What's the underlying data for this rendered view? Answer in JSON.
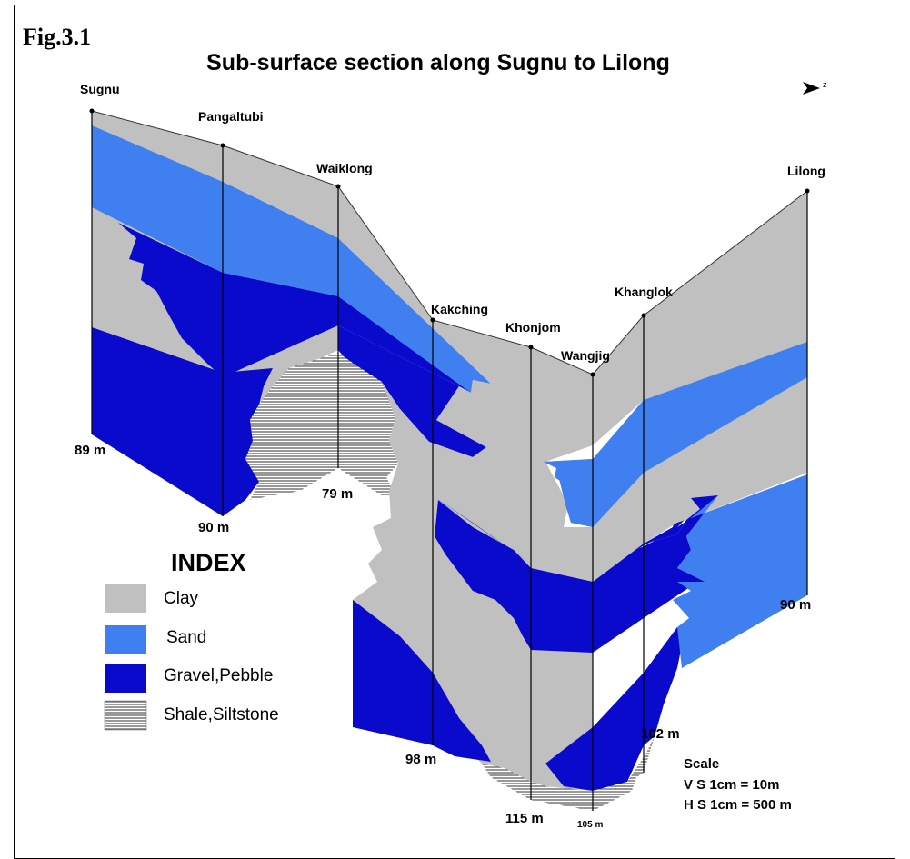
{
  "figure_label": "Fig.3.1",
  "title": "Sub-surface section along Sugnu  to Lilong",
  "north_symbol": "z",
  "wells": [
    {
      "name": "Sugnu",
      "depth_label": "89 m"
    },
    {
      "name": "Pangaltubi",
      "depth_label": "90 m"
    },
    {
      "name": "Waiklong",
      "depth_label": "79 m"
    },
    {
      "name": "Kakching",
      "depth_label": "98 m"
    },
    {
      "name": "Khonjom",
      "depth_label": "115 m"
    },
    {
      "name": "Wangjig",
      "depth_label": "105 m"
    },
    {
      "name": "Khanglok",
      "depth_label": "102 m"
    },
    {
      "name": "Lilong",
      "depth_label": "90 m"
    }
  ],
  "legend": {
    "title": "INDEX",
    "items": [
      {
        "label": "Clay",
        "color": "#c0c0c0"
      },
      {
        "label": "Sand",
        "color": "#3f7fef"
      },
      {
        "label": "Gravel,Pebble",
        "color": "#0a0acc"
      },
      {
        "label": "Shale,Siltstone",
        "pattern": "horizontal-lines"
      }
    ]
  },
  "scale": {
    "title": "Scale",
    "vertical": "V S 1cm  = 10m",
    "horizontal": "H S 1cm  = 500 m"
  },
  "colors": {
    "clay": "#c0c0c0",
    "sand": "#3f7fef",
    "gravel": "#0a0acc",
    "shale_bg": "#ffffff",
    "shale_line": "#303030"
  }
}
